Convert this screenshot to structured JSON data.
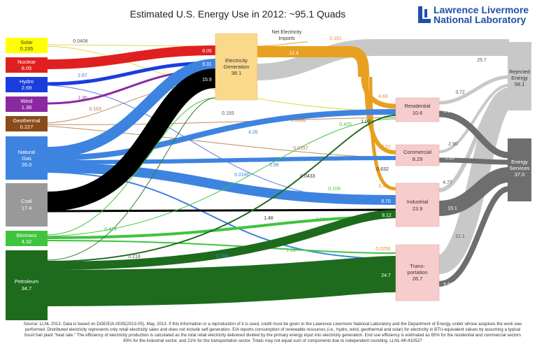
{
  "title": "Estimated U.S. Energy Use in 2012: ~95.1 Quads",
  "logo": {
    "line1": "Lawrence Livermore",
    "line2": "National Laboratory"
  },
  "colors": {
    "solar": "#ffff00",
    "nuclear": "#e02020",
    "hydro": "#1a3dde",
    "wind": "#8b2aa0",
    "geothermal": "#8b4a1a",
    "natural_gas": "#3d84e0",
    "coal": "#000000",
    "biomass": "#3fc43f",
    "petroleum": "#1e6b1e",
    "electricity": "#f7ba00",
    "rejected": "#c8c8c8",
    "services": "#6e6e6e",
    "gen_box": "#fbd98a",
    "sector_box": "#f7cccc"
  },
  "sources": [
    {
      "name": "Solar",
      "value": "0.235"
    },
    {
      "name": "Nuclear",
      "value": "8.05"
    },
    {
      "name": "Hydro",
      "value": "2.69"
    },
    {
      "name": "Wind",
      "value": "1.36"
    },
    {
      "name": "Geothermal",
      "value": "0.227"
    },
    {
      "name": "Natural Gas",
      "value": "26.0"
    },
    {
      "name": "Coal",
      "value": "17.4"
    },
    {
      "name": "Biomass",
      "value": "4.32"
    },
    {
      "name": "Petroleum",
      "value": "34.7"
    }
  ],
  "generation": {
    "line1": "Electricity",
    "line2": "Generation",
    "value": "38.1"
  },
  "imports": {
    "line1": "Net Electricity",
    "line2": "Imports",
    "value": "0.161"
  },
  "sectors": [
    {
      "name": "Residential",
      "value": "10.6"
    },
    {
      "name": "Commercial",
      "value": "8.29"
    },
    {
      "name": "Industrial",
      "value": "23.9"
    },
    {
      "name": "Transportation",
      "line1": "Trans-",
      "line2": "portation",
      "value": "26.7"
    }
  ],
  "rejected": {
    "line1": "Rejected",
    "line2": "Energy",
    "value": "58.1"
  },
  "services": {
    "line1": "Energy",
    "line2": "Services",
    "value": "37.0"
  },
  "flow_labels": [
    "0.0408",
    "8.05",
    "2.67",
    "1.36",
    "0.163",
    "9.31",
    "15.9",
    "0.193",
    "12.4",
    "4.69",
    "4.52",
    "3.35",
    "25.7",
    "3.72",
    "2.90",
    "4.77",
    "21.1",
    "6.90",
    "5.39",
    "19.1",
    "5.60",
    "4.26",
    "0.0396",
    "0.0197",
    "2.96",
    "0.0180",
    "0.0433",
    "1.02",
    "0.420",
    "0.632",
    "0.109",
    "8.70",
    "1.48",
    "2.20",
    "8.12",
    "0.429",
    "1.16",
    "0.764",
    "0.218",
    "0.0256",
    "24.7"
  ],
  "footer": "Source: LLNL 2013. Data is based on DOE/EIA-0035(2013-05), May, 2013. If this information or a reproduction of it is used, credit must be given to the Lawrence Livermore National Laboratory and the Department of Energy, under whose auspices the work was performed. Distributed electricity represents only retail electricity sales and does not include self-generation. EIA reports consumption of renewable resources (i.e., hydro, wind, geothermal and solar) for electricity in BTU-equivalent values by assuming a typical fossil fuel plant \"heat rate.\" The efficiency of electricity production is calculated as the total retail electricity delivered divided by the primary energy input into electricity generation. End use efficiency is estimated as 65% for the residential and commercial sectors 80% for the industrial sector, and 21% for the transportation sector. Totals may not equal sum of components due to independent rounding. LLNL-MI-410527"
}
